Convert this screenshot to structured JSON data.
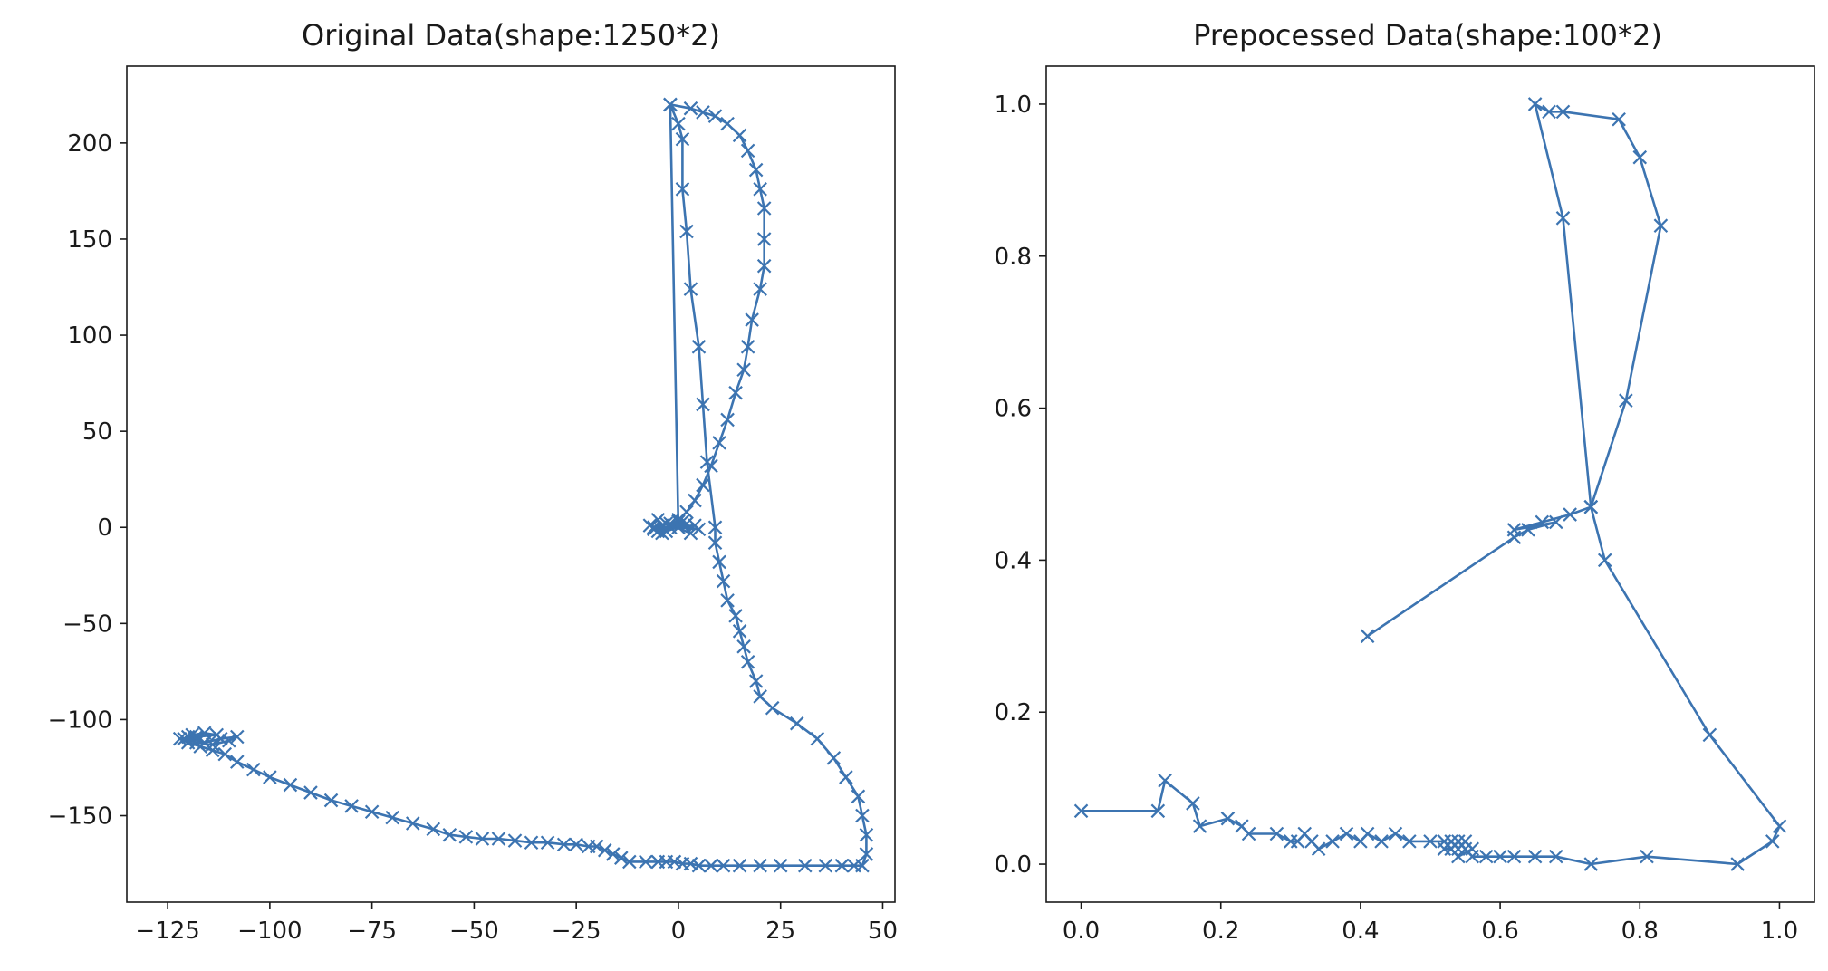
{
  "chart_data": [
    {
      "type": "line",
      "title": "Original Data(shape:1250*2)",
      "xlabel": "",
      "ylabel": "",
      "xlim": [
        -135,
        53
      ],
      "ylim": [
        -195,
        240
      ],
      "xticks": [
        -125,
        -100,
        -75,
        -50,
        -25,
        0,
        25,
        50
      ],
      "xtick_labels": [
        "−125",
        "−100",
        "−75",
        "−50",
        "−25",
        "0",
        "25",
        "50"
      ],
      "yticks": [
        -150,
        -100,
        -50,
        0,
        50,
        100,
        150,
        200
      ],
      "ytick_labels": [
        "−150",
        "−100",
        "−50",
        "0",
        "50",
        "100",
        "150",
        "200"
      ],
      "grid": false,
      "marker": "x",
      "color": "#3c74b1",
      "series": [
        {
          "x": [
            -5,
            -7,
            -3,
            -6,
            0,
            -4,
            2,
            -6,
            -2,
            4,
            -5,
            1,
            3,
            -3,
            5,
            0,
            -2,
            0,
            1,
            1,
            2,
            3,
            5,
            6,
            7,
            9,
            9,
            10,
            11,
            12,
            14,
            15,
            16,
            17,
            19,
            20,
            23,
            29,
            34,
            38,
            41,
            44,
            45,
            46,
            46,
            45,
            43,
            40,
            36,
            31,
            25,
            20,
            15,
            11,
            8,
            5,
            3,
            1,
            -1,
            -3,
            -5,
            -8,
            -12,
            -14,
            -16,
            -18,
            -20,
            -22,
            -25,
            -28,
            -32,
            -36,
            -40,
            -44,
            -48,
            -52,
            -56,
            -60,
            -65,
            -70,
            -75,
            -80,
            -85,
            -90,
            -95,
            -100,
            -104,
            -108,
            -111,
            -114,
            -117,
            -120,
            -122,
            -118,
            -113,
            -116,
            -119,
            -121,
            -118,
            -114,
            -110,
            -108,
            -112,
            -116,
            -120
          ],
          "y": [
            4,
            1,
            -2,
            0,
            3,
            -3,
            2,
            -1,
            0,
            1,
            -2,
            3,
            -3,
            2,
            -1,
            0,
            220,
            210,
            202,
            176,
            154,
            124,
            94,
            64,
            34,
            0,
            -8,
            -18,
            -28,
            -38,
            -46,
            -54,
            -62,
            -70,
            -80,
            -88,
            -94,
            -102,
            -110,
            -120,
            -130,
            -140,
            -150,
            -160,
            -170,
            -176,
            -176,
            -176,
            -176,
            -176,
            -176,
            -176,
            -176,
            -176,
            -176,
            -176,
            -175,
            -175,
            -174,
            -174,
            -174,
            -174,
            -174,
            -172,
            -170,
            -168,
            -166,
            -166,
            -165,
            -165,
            -164,
            -164,
            -163,
            -162,
            -162,
            -161,
            -160,
            -157,
            -154,
            -151,
            -148,
            -145,
            -142,
            -138,
            -134,
            -130,
            -126,
            -122,
            -118,
            -116,
            -114,
            -112,
            -110,
            -109,
            -108,
            -107,
            -108,
            -110,
            -112,
            -113,
            -111,
            -109,
            -110,
            -112,
            -109
          ]
        },
        {
          "x": [
            -2,
            3,
            6,
            9,
            12,
            15,
            17,
            19,
            20,
            21,
            21,
            21,
            20,
            18,
            17,
            16,
            14,
            12,
            10,
            8,
            6,
            4,
            2,
            0,
            -2,
            -4,
            -6
          ],
          "y": [
            220,
            218,
            216,
            214,
            210,
            204,
            196,
            186,
            176,
            166,
            150,
            136,
            124,
            108,
            94,
            82,
            70,
            56,
            44,
            32,
            22,
            14,
            8,
            4,
            2,
            1,
            0
          ]
        }
      ]
    },
    {
      "type": "line",
      "title": "Prepocessed Data(shape:100*2)",
      "xlabel": "",
      "ylabel": "",
      "xlim": [
        -0.05,
        1.05
      ],
      "ylim": [
        -0.05,
        1.05
      ],
      "xticks": [
        0.0,
        0.2,
        0.4,
        0.6,
        0.8,
        1.0
      ],
      "xtick_labels": [
        "0.0",
        "0.2",
        "0.4",
        "0.6",
        "0.8",
        "1.0"
      ],
      "yticks": [
        0.0,
        0.2,
        0.4,
        0.6,
        0.8,
        1.0
      ],
      "ytick_labels": [
        "0.0",
        "0.2",
        "0.4",
        "0.6",
        "0.8",
        "1.0"
      ],
      "grid": false,
      "marker": "x",
      "color": "#3c74b1",
      "series": [
        {
          "x": [
            0.41,
            0.62,
            0.64,
            0.68,
            0.62,
            0.66,
            0.7,
            0.73,
            0.78,
            0.83,
            0.8,
            0.77,
            0.69,
            0.67,
            0.65,
            0.69,
            0.73,
            0.75,
            0.9,
            1.0,
            0.99,
            0.94,
            0.81,
            0.73,
            0.68,
            0.65,
            0.62,
            0.6,
            0.58,
            0.56,
            0.55,
            0.54,
            0.53,
            0.52,
            0.53,
            0.54,
            0.55,
            0.56,
            0.54,
            0.52,
            0.5,
            0.47,
            0.45,
            0.43,
            0.41,
            0.4,
            0.38,
            0.36,
            0.34,
            0.33,
            0.32,
            0.31,
            0.3,
            0.28,
            0.24,
            0.23,
            0.21,
            0.17,
            0.16,
            0.12,
            0.11,
            0.0
          ],
          "y": [
            0.3,
            0.43,
            0.44,
            0.45,
            0.44,
            0.45,
            0.46,
            0.47,
            0.61,
            0.84,
            0.93,
            0.98,
            0.99,
            0.99,
            1.0,
            0.85,
            0.47,
            0.4,
            0.17,
            0.05,
            0.03,
            0.0,
            0.01,
            0.0,
            0.01,
            0.01,
            0.01,
            0.01,
            0.01,
            0.01,
            0.02,
            0.03,
            0.02,
            0.02,
            0.03,
            0.02,
            0.03,
            0.02,
            0.01,
            0.03,
            0.03,
            0.03,
            0.04,
            0.03,
            0.04,
            0.03,
            0.04,
            0.03,
            0.02,
            0.03,
            0.04,
            0.03,
            0.03,
            0.04,
            0.04,
            0.05,
            0.06,
            0.05,
            0.08,
            0.11,
            0.07,
            0.07
          ]
        }
      ]
    }
  ]
}
